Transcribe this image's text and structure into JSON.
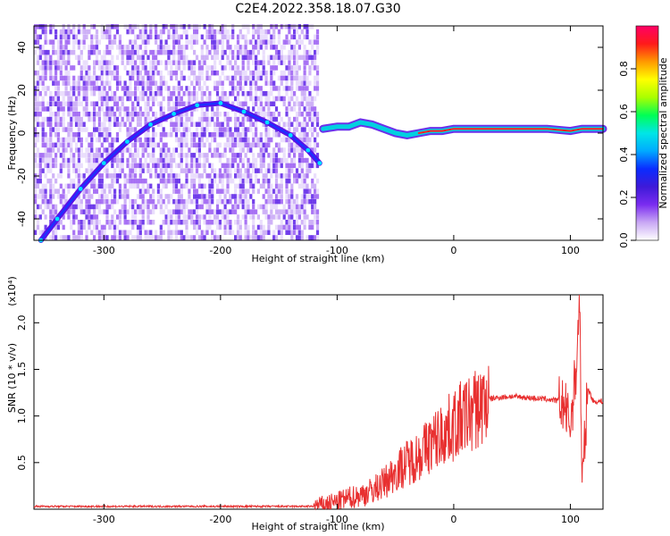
{
  "title": "C2E4.2022.358.18.07.G30",
  "chart_data": [
    {
      "type": "heatmap",
      "xlabel": "Height of straight line (km)",
      "ylabel": "Frequency (Hz)",
      "xlim": [
        -360,
        128
      ],
      "ylim": [
        -50,
        50
      ],
      "xticks": [
        -300,
        -200,
        -100,
        0,
        100
      ],
      "yticks": [
        -40,
        -20,
        0,
        20,
        40
      ],
      "colorbar": {
        "label": "Normalized spectral amplitude",
        "range": [
          0,
          1
        ],
        "ticks": [
          0.0,
          0.2,
          0.4,
          0.6,
          0.8
        ],
        "colors": [
          "#ffffff",
          "#c9a8f4",
          "#7a2cf0",
          "#3e1ad8",
          "#0a2cff",
          "#00aaff",
          "#00e6e6",
          "#00ff55",
          "#aaff00",
          "#ffff00",
          "#ff9900",
          "#ff1a1a",
          "#ff0066"
        ]
      },
      "trace_arc": [
        [
          -354,
          -50
        ],
        [
          -340,
          -40
        ],
        [
          -320,
          -26
        ],
        [
          -300,
          -14
        ],
        [
          -280,
          -4
        ],
        [
          -260,
          4
        ],
        [
          -240,
          9
        ],
        [
          -220,
          13
        ],
        [
          -200,
          14
        ],
        [
          -180,
          10
        ],
        [
          -160,
          5
        ],
        [
          -140,
          -1
        ],
        [
          -125,
          -8
        ],
        [
          -115,
          -14
        ]
      ],
      "trace_flat": [
        [
          -112,
          2
        ],
        [
          -100,
          3
        ],
        [
          -90,
          3
        ],
        [
          -80,
          5
        ],
        [
          -70,
          4
        ],
        [
          -60,
          2
        ],
        [
          -50,
          0
        ],
        [
          -40,
          -1
        ],
        [
          -30,
          0
        ],
        [
          -20,
          1
        ],
        [
          -10,
          1
        ],
        [
          0,
          2
        ],
        [
          20,
          2
        ],
        [
          40,
          2
        ],
        [
          60,
          2
        ],
        [
          80,
          2
        ],
        [
          100,
          1
        ],
        [
          110,
          2
        ],
        [
          128,
          2
        ]
      ]
    },
    {
      "type": "line",
      "xlabel": "Height of straight line (km)",
      "ylabel": "SNR (10 * v/v)",
      "yscale_label": "(x10⁴)",
      "xlim": [
        -360,
        128
      ],
      "ylim": [
        0,
        2.3
      ],
      "xticks": [
        -300,
        -200,
        -100,
        0,
        100
      ],
      "yticks": [
        0.5,
        1.0,
        1.5,
        2.0
      ],
      "series": [
        {
          "color": "#e83030",
          "x": [
            -360,
            -300,
            -200,
            -120,
            -100,
            -90,
            -80,
            -70,
            -60,
            -50,
            -40,
            -30,
            -20,
            -10,
            0,
            10,
            20,
            30,
            40,
            50,
            60,
            70,
            80,
            90,
            95,
            100,
            105,
            108,
            110,
            115,
            120,
            128
          ],
          "y": [
            0.03,
            0.03,
            0.03,
            0.03,
            0.08,
            0.12,
            0.15,
            0.2,
            0.28,
            0.4,
            0.5,
            0.58,
            0.7,
            0.8,
            0.9,
            1.0,
            1.08,
            1.18,
            1.2,
            1.21,
            1.2,
            1.19,
            1.18,
            1.16,
            1.1,
            0.9,
            1.5,
            2.3,
            0.2,
            1.3,
            1.15,
            1.16
          ]
        }
      ]
    }
  ]
}
